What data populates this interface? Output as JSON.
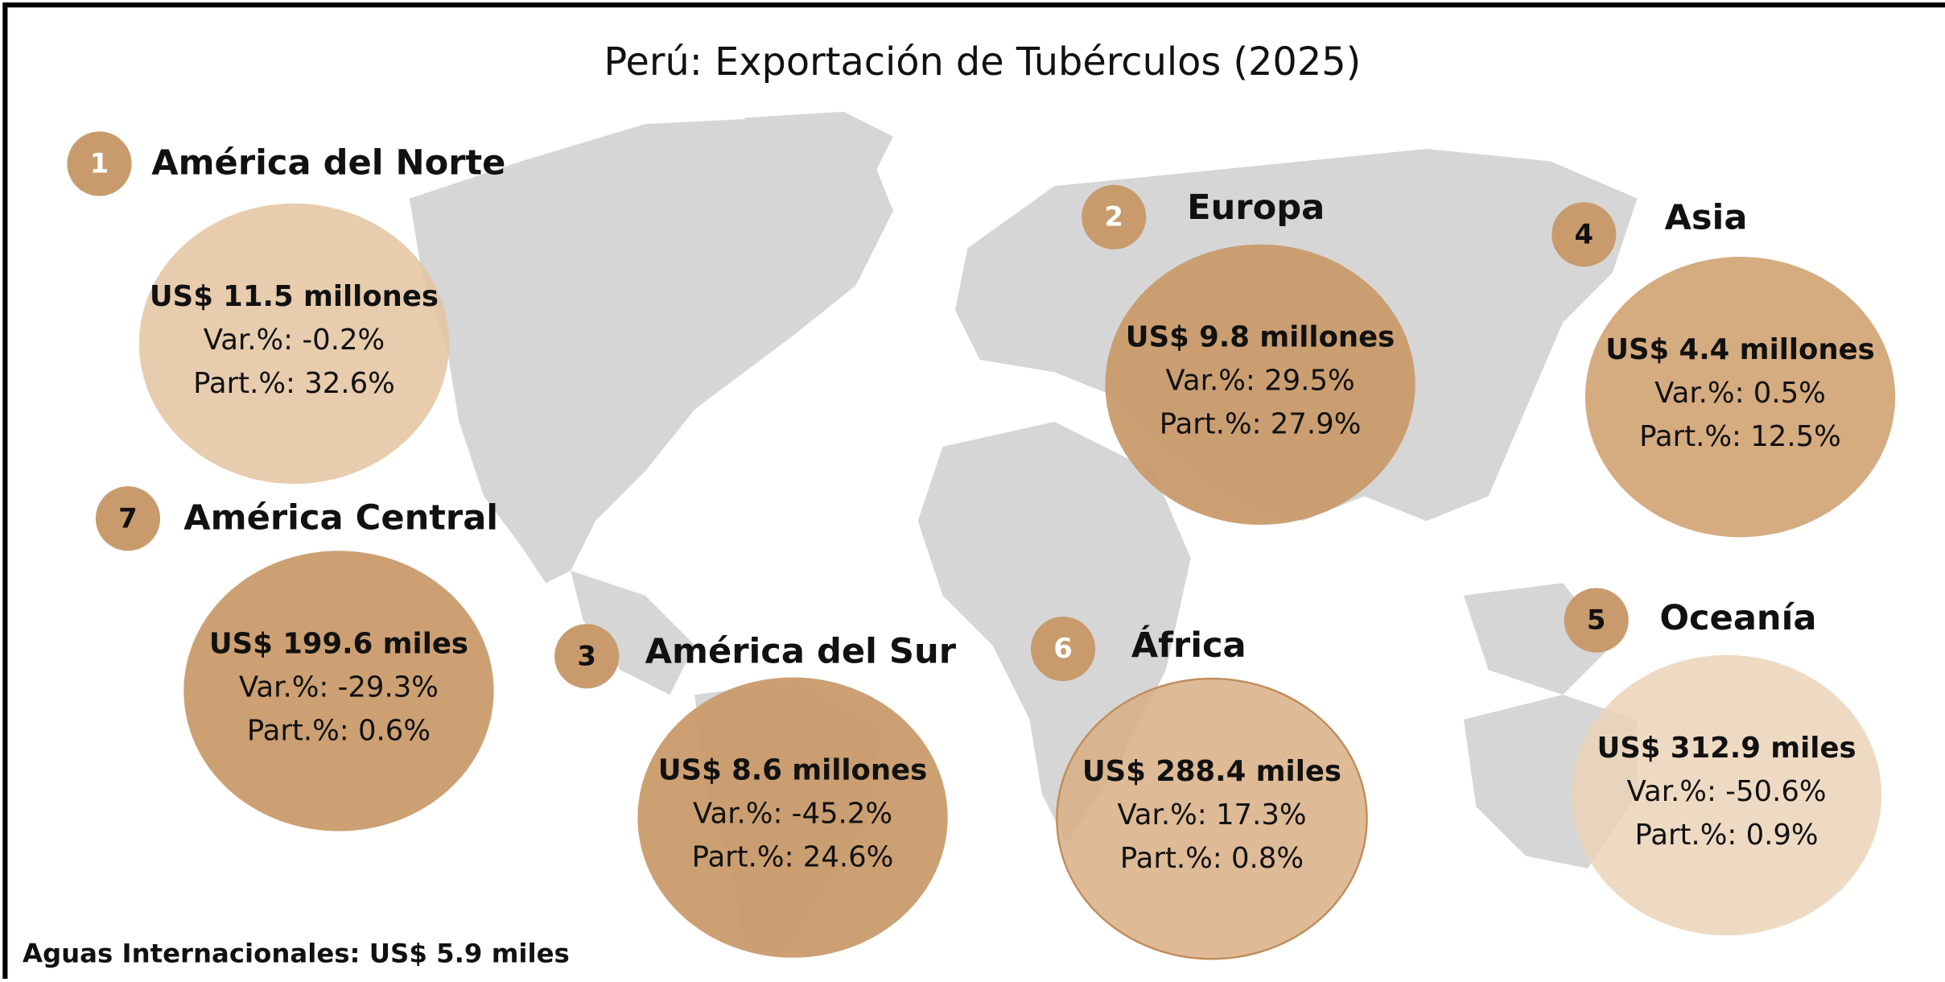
{
  "header": {
    "title": "Perú: Exportación de Tubérculos (2025)"
  },
  "regions": [
    {
      "rank": "1",
      "name": "América del Norte",
      "value": "US$ 11.5 millones",
      "var": "Var.%: -0.2%",
      "part": "Part.%: 32.6%"
    },
    {
      "rank": "2",
      "name": "Europa",
      "value": "US$ 9.8 millones",
      "var": "Var.%: 29.5%",
      "part": "Part.%: 27.9%"
    },
    {
      "rank": "4",
      "name": "Asia",
      "value": "US$ 4.4 millones",
      "var": "Var.%: 0.5%",
      "part": "Part.%: 12.5%"
    },
    {
      "rank": "7",
      "name": "América Central",
      "value": "US$ 199.6 miles",
      "var": "Var.%: -29.3%",
      "part": "Part.%: 0.6%"
    },
    {
      "rank": "3",
      "name": "América del Sur",
      "value": "US$ 8.6 millones",
      "var": "Var.%: -45.2%",
      "part": "Part.%: 24.6%"
    },
    {
      "rank": "6",
      "name": "África",
      "value": "US$ 288.4 miles",
      "var": "Var.%: 17.3%",
      "part": "Part.%: 0.8%"
    },
    {
      "rank": "5",
      "name": "Oceanía",
      "value": "US$ 312.9 miles",
      "var": "Var.%: -50.6%",
      "part": "Part.%: 0.9%"
    }
  ],
  "footer": {
    "note": "Aguas Internacionales: US$ 5.9 miles"
  }
}
